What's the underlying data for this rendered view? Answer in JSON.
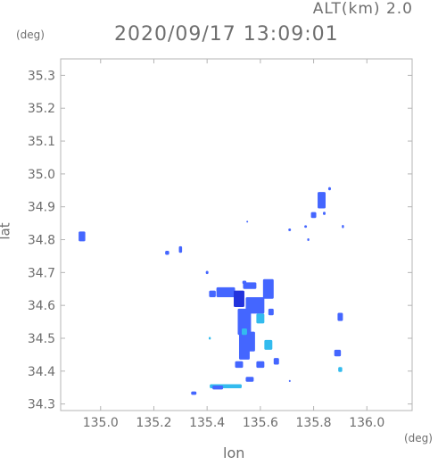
{
  "header": {
    "altitude_label": "ALT(km)  2.0",
    "timestamp": "2020/09/17 13:09:01"
  },
  "chart_data": {
    "type": "heatmap",
    "title": "2020/09/17 13:09:01",
    "subtitle": "ALT(km)  2.0",
    "xlabel": "lon",
    "ylabel": "lat",
    "x_unit": "(deg)",
    "y_unit": "(deg)",
    "xlim": [
      134.85,
      136.17
    ],
    "ylim": [
      34.28,
      35.35
    ],
    "x_ticks": [
      135.0,
      135.2,
      135.4,
      135.6,
      135.8,
      136.0
    ],
    "x_tick_labels": [
      "135.0",
      "135.2",
      "135.4",
      "135.6",
      "135.8",
      "136.0"
    ],
    "y_ticks": [
      34.3,
      34.4,
      34.5,
      34.6,
      34.7,
      34.8,
      34.9,
      35.0,
      35.1,
      35.2,
      35.3
    ],
    "y_tick_labels": [
      "34.3",
      "34.4",
      "34.5",
      "34.6",
      "34.7",
      "34.8",
      "34.9",
      "35.0",
      "35.1",
      "35.2",
      "35.3"
    ],
    "grid": false,
    "colors": {
      "frame": "#b4b4b4",
      "text": "#6e6e6e",
      "weak_echo": "#33bbee",
      "moderate_echo": "#4466ff",
      "strong_echo": "#2233dd"
    },
    "echo_cells": [
      {
        "lon": 134.93,
        "lat": 34.81,
        "dlon": 0.025,
        "dlat": 0.03,
        "level": "moderate_echo"
      },
      {
        "lon": 135.25,
        "lat": 34.76,
        "dlon": 0.015,
        "dlat": 0.012,
        "level": "moderate_echo"
      },
      {
        "lon": 135.3,
        "lat": 34.77,
        "dlon": 0.012,
        "dlat": 0.02,
        "level": "moderate_echo"
      },
      {
        "lon": 135.42,
        "lat": 34.635,
        "dlon": 0.025,
        "dlat": 0.02,
        "level": "moderate_echo"
      },
      {
        "lon": 135.4,
        "lat": 34.7,
        "dlon": 0.01,
        "dlat": 0.01,
        "level": "moderate_echo"
      },
      {
        "lon": 135.47,
        "lat": 34.64,
        "dlon": 0.07,
        "dlat": 0.03,
        "level": "moderate_echo"
      },
      {
        "lon": 135.52,
        "lat": 34.62,
        "dlon": 0.04,
        "dlat": 0.05,
        "level": "strong_echo"
      },
      {
        "lon": 135.54,
        "lat": 34.55,
        "dlon": 0.05,
        "dlat": 0.08,
        "level": "moderate_echo"
      },
      {
        "lon": 135.55,
        "lat": 34.49,
        "dlon": 0.06,
        "dlat": 0.06,
        "level": "moderate_echo"
      },
      {
        "lon": 135.58,
        "lat": 34.6,
        "dlon": 0.07,
        "dlat": 0.05,
        "level": "moderate_echo"
      },
      {
        "lon": 135.56,
        "lat": 34.66,
        "dlon": 0.05,
        "dlat": 0.02,
        "level": "moderate_echo"
      },
      {
        "lon": 135.63,
        "lat": 34.65,
        "dlon": 0.04,
        "dlat": 0.06,
        "level": "moderate_echo"
      },
      {
        "lon": 135.6,
        "lat": 34.56,
        "dlon": 0.03,
        "dlat": 0.03,
        "level": "weak_echo"
      },
      {
        "lon": 135.54,
        "lat": 34.52,
        "dlon": 0.02,
        "dlat": 0.02,
        "level": "weak_echo"
      },
      {
        "lon": 135.54,
        "lat": 34.45,
        "dlon": 0.04,
        "dlat": 0.03,
        "level": "moderate_echo"
      },
      {
        "lon": 135.52,
        "lat": 34.42,
        "dlon": 0.03,
        "dlat": 0.02,
        "level": "moderate_echo"
      },
      {
        "lon": 135.6,
        "lat": 34.42,
        "dlon": 0.03,
        "dlat": 0.02,
        "level": "moderate_echo"
      },
      {
        "lon": 135.63,
        "lat": 34.48,
        "dlon": 0.03,
        "dlat": 0.03,
        "level": "weak_echo"
      },
      {
        "lon": 135.66,
        "lat": 34.43,
        "dlon": 0.02,
        "dlat": 0.02,
        "level": "moderate_echo"
      },
      {
        "lon": 135.64,
        "lat": 34.58,
        "dlon": 0.02,
        "dlat": 0.02,
        "level": "moderate_echo"
      },
      {
        "lon": 135.54,
        "lat": 34.67,
        "dlon": 0.015,
        "dlat": 0.01,
        "level": "moderate_echo"
      },
      {
        "lon": 135.56,
        "lat": 34.375,
        "dlon": 0.03,
        "dlat": 0.015,
        "level": "moderate_echo"
      },
      {
        "lon": 135.47,
        "lat": 34.354,
        "dlon": 0.12,
        "dlat": 0.012,
        "level": "weak_echo"
      },
      {
        "lon": 135.44,
        "lat": 34.35,
        "dlon": 0.04,
        "dlat": 0.012,
        "level": "moderate_echo"
      },
      {
        "lon": 135.35,
        "lat": 34.333,
        "dlon": 0.02,
        "dlat": 0.01,
        "level": "moderate_echo"
      },
      {
        "lon": 135.41,
        "lat": 34.5,
        "dlon": 0.008,
        "dlat": 0.008,
        "level": "weak_echo"
      },
      {
        "lon": 135.55,
        "lat": 34.855,
        "dlon": 0.005,
        "dlat": 0.005,
        "level": "moderate_echo"
      },
      {
        "lon": 135.71,
        "lat": 34.83,
        "dlon": 0.01,
        "dlat": 0.008,
        "level": "moderate_echo"
      },
      {
        "lon": 135.77,
        "lat": 34.84,
        "dlon": 0.01,
        "dlat": 0.008,
        "level": "moderate_echo"
      },
      {
        "lon": 135.8,
        "lat": 34.875,
        "dlon": 0.02,
        "dlat": 0.018,
        "level": "moderate_echo"
      },
      {
        "lon": 135.83,
        "lat": 34.92,
        "dlon": 0.03,
        "dlat": 0.05,
        "level": "moderate_echo"
      },
      {
        "lon": 135.86,
        "lat": 34.955,
        "dlon": 0.01,
        "dlat": 0.01,
        "level": "moderate_echo"
      },
      {
        "lon": 135.84,
        "lat": 34.88,
        "dlon": 0.01,
        "dlat": 0.01,
        "level": "moderate_echo"
      },
      {
        "lon": 135.78,
        "lat": 34.8,
        "dlon": 0.008,
        "dlat": 0.008,
        "level": "moderate_echo"
      },
      {
        "lon": 135.91,
        "lat": 34.84,
        "dlon": 0.008,
        "dlat": 0.01,
        "level": "moderate_echo"
      },
      {
        "lon": 135.9,
        "lat": 34.565,
        "dlon": 0.02,
        "dlat": 0.025,
        "level": "moderate_echo"
      },
      {
        "lon": 135.89,
        "lat": 34.455,
        "dlon": 0.025,
        "dlat": 0.02,
        "level": "moderate_echo"
      },
      {
        "lon": 135.9,
        "lat": 34.405,
        "dlon": 0.015,
        "dlat": 0.015,
        "level": "weak_echo"
      },
      {
        "lon": 135.71,
        "lat": 34.37,
        "dlon": 0.006,
        "dlat": 0.006,
        "level": "moderate_echo"
      }
    ]
  }
}
